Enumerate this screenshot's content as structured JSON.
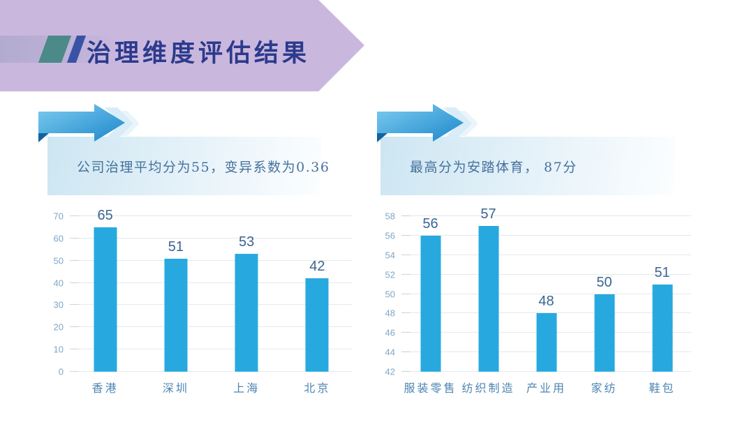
{
  "header": {
    "title": "治理维度评估结果"
  },
  "callouts": {
    "left": {
      "text": "公司治理平均分为55，变异系数为0.36"
    },
    "right": {
      "text": "最高分为安踏体育， 87分"
    }
  },
  "chart_data": [
    {
      "type": "bar",
      "title": "",
      "xlabel": "",
      "ylabel": "",
      "categories": [
        "香港",
        "深圳",
        "上海",
        "北京"
      ],
      "values": [
        65,
        51,
        53,
        42
      ],
      "ylim": [
        0,
        70
      ],
      "ytick_step": 10,
      "yticks": [
        0,
        10,
        20,
        30,
        40,
        50,
        60,
        70
      ],
      "grid": true,
      "legend": null
    },
    {
      "type": "bar",
      "title": "",
      "xlabel": "",
      "ylabel": "",
      "categories": [
        "服装零售",
        "纺织制造",
        "产业用",
        "家纺",
        "鞋包"
      ],
      "values": [
        56,
        57,
        48,
        50,
        51
      ],
      "ylim": [
        42,
        58
      ],
      "ytick_step": 2,
      "yticks": [
        42,
        44,
        46,
        48,
        50,
        52,
        54,
        56,
        58
      ],
      "grid": true,
      "legend": null
    }
  ],
  "palette": {
    "banner": "#cab7dd",
    "banner_band": "#b2abd0",
    "slash_teal": "#4b8a89",
    "slash_blue": "#3952a5",
    "title_text": "#2b3a8c",
    "callout_text": "#46719c",
    "callout_bg_start": "#cde6f2",
    "arrow_blue_light": "#7ecdf0",
    "arrow_blue_dark": "#1c87cb",
    "arrow_fold": "#10639f",
    "bar": "#27a9e0",
    "bar_value_text": "#3a6590",
    "ytick_text": "#7fa6c6",
    "category_text": "#4d85b2",
    "gridline": "#e3e9ee"
  }
}
